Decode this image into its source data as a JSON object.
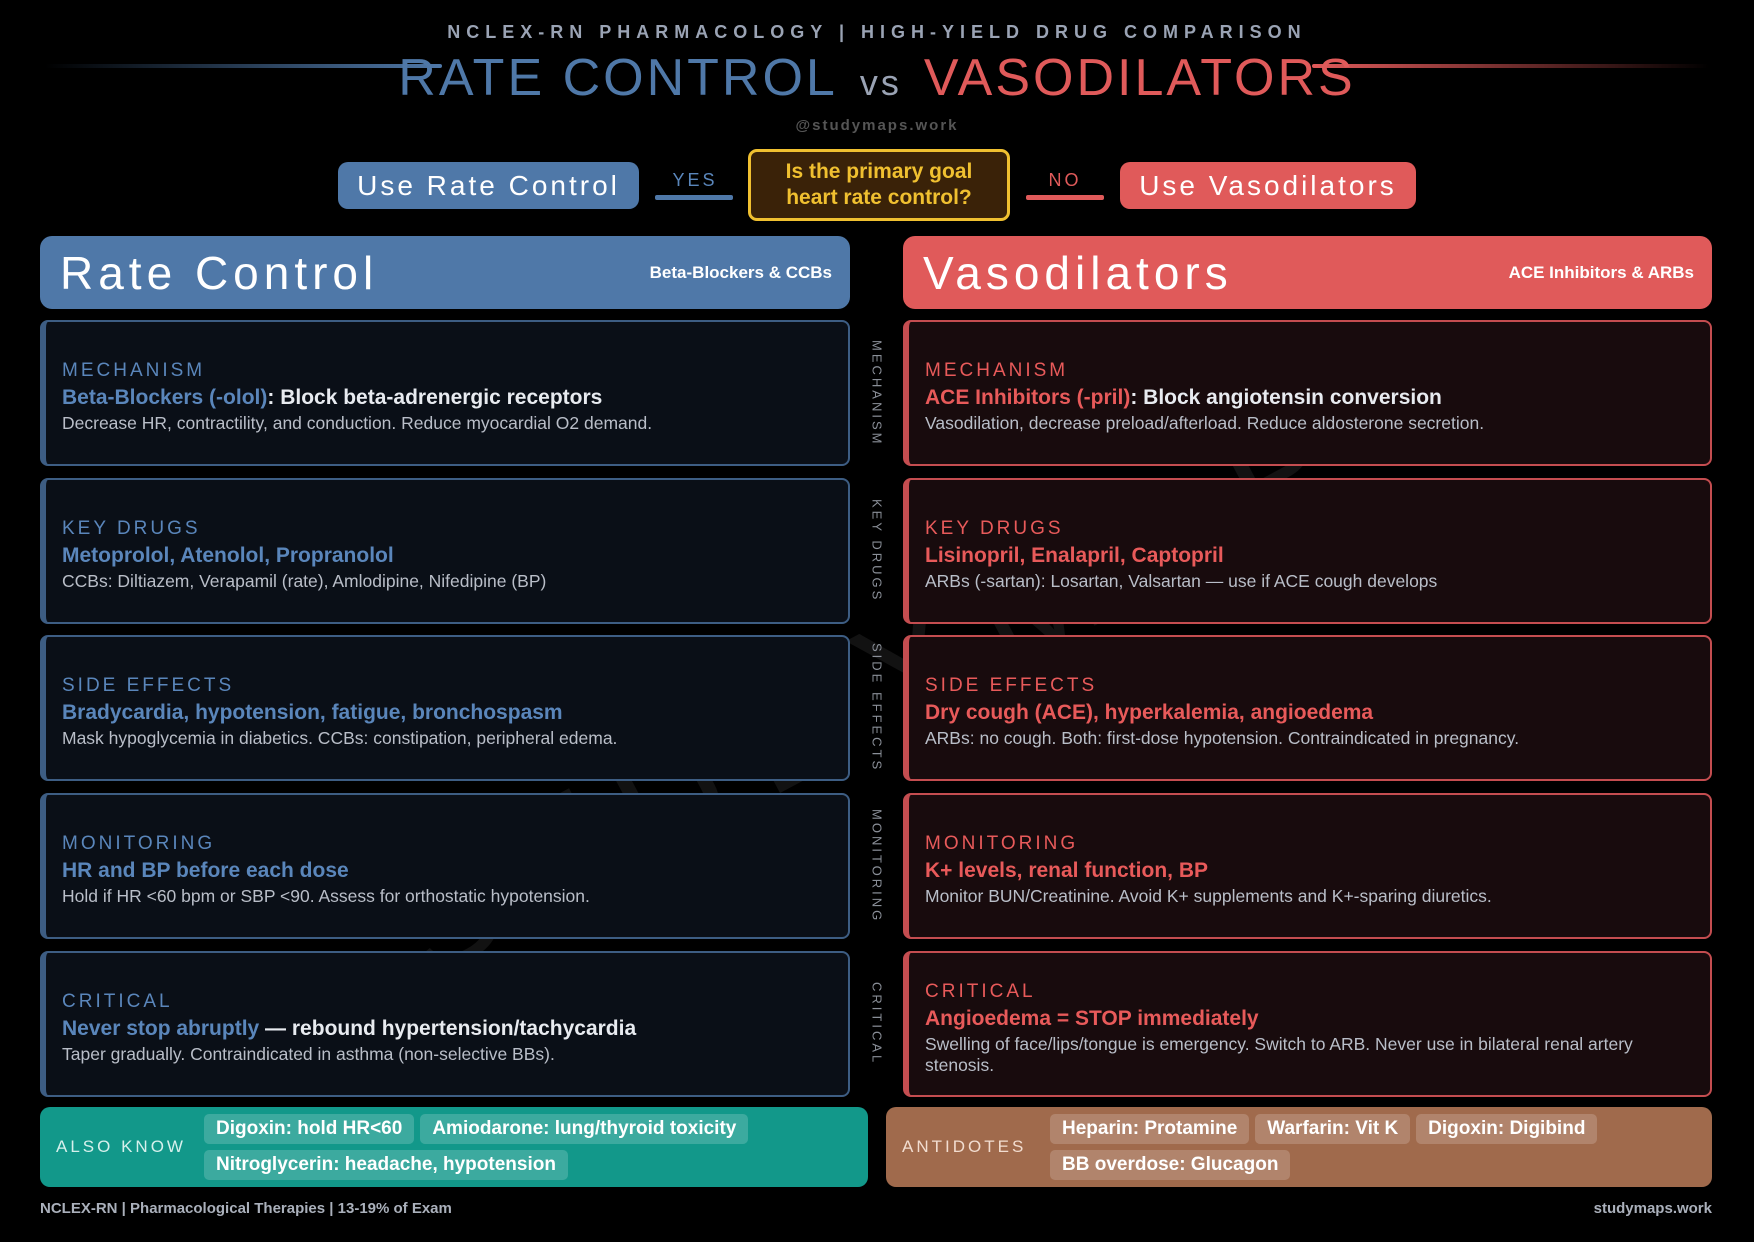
{
  "header": {
    "supertitle": "NCLEX-RN PHARMACOLOGY | HIGH-YIELD DRUG COMPARISON",
    "title_left": "RATE CONTROL",
    "title_vs": "vs",
    "title_right": "VASODILATORS",
    "handle": "@studymaps.work"
  },
  "flow": {
    "left_button": "Use Rate Control",
    "yes": "YES",
    "question_line1": "Is the primary goal",
    "question_line2": "heart rate control?",
    "no": "NO",
    "right_button": "Use Vasodilators"
  },
  "colors": {
    "blue": "#4f78a8",
    "red": "#e05a5a",
    "yellow": "#f0c030",
    "teal": "#12988a",
    "brown": "#a06a4c"
  },
  "left": {
    "title": "Rate Control",
    "subtitle": "Beta-Blockers & CCBs",
    "cards": [
      {
        "label": "MECHANISM",
        "highlight": "Beta-Blockers (-olol)",
        "rest": ": Block beta-adrenergic receptors",
        "desc": "Decrease HR, contractility, and conduction. Reduce myocardial O2 demand."
      },
      {
        "label": "KEY DRUGS",
        "highlight": "Metoprolol, Atenolol, Propranolol",
        "rest": "",
        "desc": "CCBs: Diltiazem, Verapamil (rate), Amlodipine, Nifedipine (BP)"
      },
      {
        "label": "SIDE EFFECTS",
        "highlight": "Bradycardia, hypotension, fatigue, bronchospasm",
        "rest": "",
        "desc": "Mask hypoglycemia in diabetics. CCBs: constipation, peripheral edema."
      },
      {
        "label": "MONITORING",
        "highlight": "HR and BP before each dose",
        "rest": "",
        "desc": "Hold if HR <60 bpm or SBP <90. Assess for orthostatic hypotension."
      },
      {
        "label": "CRITICAL",
        "highlight": "Never stop abruptly",
        "rest": " — rebound hypertension/tachycardia",
        "desc": "Taper gradually. Contraindicated in asthma (non-selective BBs)."
      }
    ]
  },
  "right": {
    "title": "Vasodilators",
    "subtitle": "ACE Inhibitors & ARBs",
    "cards": [
      {
        "label": "MECHANISM",
        "highlight": "ACE Inhibitors (-pril)",
        "rest": ": Block angiotensin conversion",
        "desc": "Vasodilation, decrease preload/afterload. Reduce aldosterone secretion."
      },
      {
        "label": "KEY DRUGS",
        "highlight": "Lisinopril, Enalapril, Captopril",
        "rest": "",
        "desc": "ARBs (-sartan): Losartan, Valsartan — use if ACE cough develops"
      },
      {
        "label": "SIDE EFFECTS",
        "highlight": "Dry cough (ACE), hyperkalemia, angioedema",
        "rest": "",
        "desc": "ARBs: no cough. Both: first-dose hypotension. Contraindicated in pregnancy."
      },
      {
        "label": "MONITORING",
        "highlight": "K+ levels, renal function, BP",
        "rest": "",
        "desc": "Monitor BUN/Creatinine. Avoid K+ supplements and K+-sparing diuretics."
      },
      {
        "label": "CRITICAL",
        "highlight": "Angioedema = STOP immediately",
        "rest": "",
        "desc": "Swelling of face/lips/tongue is emergency. Switch to ARB. Never use in bilateral renal artery stenosis."
      }
    ]
  },
  "center_labels": [
    "MECHANISM",
    "KEY DRUGS",
    "SIDE EFFECTS",
    "MONITORING",
    "CRITICAL"
  ],
  "also_know": {
    "label": "ALSO KNOW",
    "tags": [
      "Digoxin: hold HR<60",
      "Amiodarone: lung/thyroid toxicity",
      "Nitroglycerin: headache, hypotension"
    ]
  },
  "antidotes": {
    "label": "ANTIDOTES",
    "tags": [
      "Heparin: Protamine",
      "Warfarin: Vit K",
      "Digoxin: Digibind",
      "BB overdose: Glucagon"
    ]
  },
  "footer": {
    "left": "NCLEX-RN | Pharmacological Therapies | 13-19% of Exam",
    "right": "studymaps.work"
  },
  "watermark": "STUDYMAPS"
}
